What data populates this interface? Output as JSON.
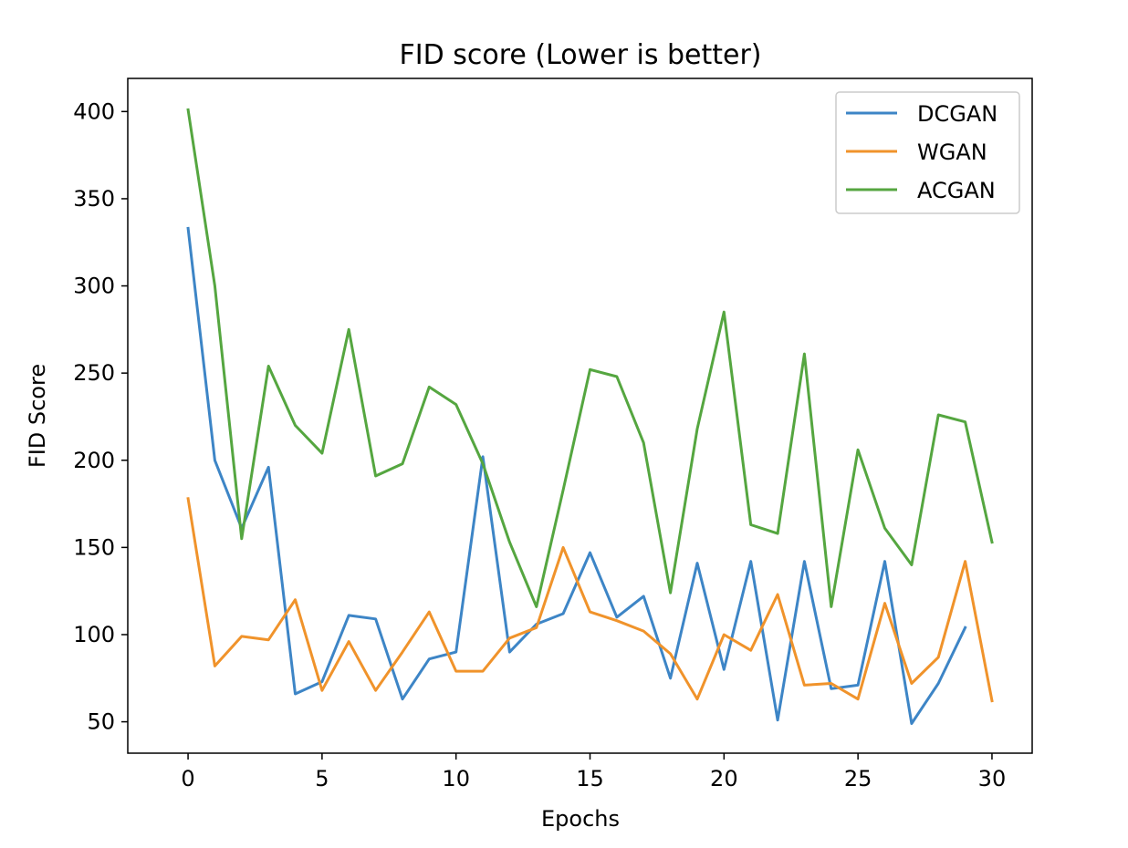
{
  "chart_data": {
    "type": "line",
    "title": "FID score (Lower is better)",
    "xlabel": "Epochs",
    "ylabel": "FID Score",
    "xlim": [
      -2.25,
      31.5
    ],
    "ylim": [
      32,
      419
    ],
    "xticks": [
      0,
      5,
      10,
      15,
      20,
      25,
      30
    ],
    "yticks": [
      50,
      100,
      150,
      200,
      250,
      300,
      350,
      400
    ],
    "xtick_labels": [
      "0",
      "5",
      "10",
      "15",
      "20",
      "25",
      "30"
    ],
    "ytick_labels": [
      "50",
      "100",
      "150",
      "200",
      "250",
      "300",
      "350",
      "400"
    ],
    "grid": false,
    "legend_position": "top-right",
    "series": [
      {
        "name": "DCGAN",
        "color": "#3d85c6",
        "x": [
          0,
          1,
          2,
          3,
          4,
          5,
          6,
          7,
          8,
          9,
          10,
          11,
          12,
          13,
          14,
          15,
          16,
          17,
          18,
          19,
          20,
          21,
          22,
          23,
          24,
          25,
          26,
          27,
          28,
          29
        ],
        "values": [
          333,
          200,
          161,
          196,
          66,
          73,
          111,
          109,
          63,
          86,
          90,
          202,
          90,
          106,
          112,
          147,
          110,
          122,
          75,
          141,
          80,
          142,
          51,
          142,
          69,
          71,
          142,
          49,
          72,
          104
        ]
      },
      {
        "name": "WGAN",
        "color": "#f0932b",
        "x": [
          0,
          1,
          2,
          3,
          4,
          5,
          6,
          7,
          8,
          9,
          10,
          11,
          12,
          13,
          14,
          15,
          16,
          17,
          18,
          19,
          20,
          21,
          22,
          23,
          24,
          25,
          26,
          27,
          28,
          29,
          30
        ],
        "values": [
          178,
          82,
          99,
          97,
          120,
          68,
          96,
          68,
          90,
          113,
          79,
          79,
          98,
          104,
          150,
          113,
          108,
          102,
          89,
          63,
          100,
          91,
          123,
          71,
          72,
          63,
          118,
          72,
          87,
          142,
          62
        ]
      },
      {
        "name": "ACGAN",
        "color": "#55a640",
        "x": [
          0,
          1,
          2,
          3,
          4,
          5,
          6,
          7,
          8,
          9,
          10,
          11,
          12,
          13,
          14,
          15,
          16,
          17,
          18,
          19,
          20,
          21,
          22,
          23,
          24,
          25,
          26,
          27,
          28,
          29,
          30
        ],
        "values": [
          401,
          300,
          155,
          254,
          220,
          204,
          275,
          191,
          198,
          242,
          232,
          198,
          153,
          116,
          183,
          252,
          248,
          210,
          124,
          218,
          285,
          163,
          158,
          261,
          116,
          206,
          161,
          140,
          226,
          222,
          153
        ]
      }
    ]
  }
}
